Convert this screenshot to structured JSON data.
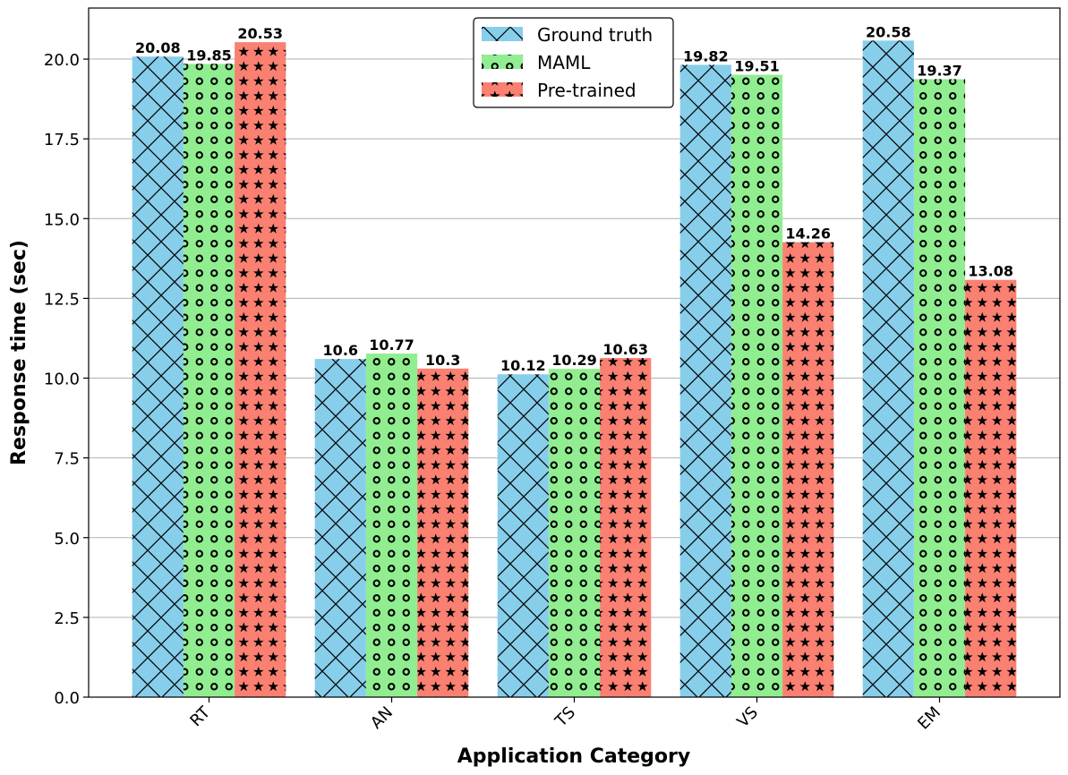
{
  "chart_data": {
    "type": "bar",
    "xlabel": "Application Category",
    "ylabel": "Response time (sec)",
    "categories": [
      "RT",
      "AN",
      "TS",
      "VS",
      "EM"
    ],
    "series": [
      {
        "name": "Ground truth",
        "values": [
          20.08,
          10.6,
          10.12,
          19.82,
          20.58
        ],
        "color": "#87ceeb",
        "pattern": "cross-hatch"
      },
      {
        "name": "MAML",
        "values": [
          19.85,
          10.77,
          10.29,
          19.51,
          19.37
        ],
        "color": "#90ee90",
        "pattern": "circles"
      },
      {
        "name": "Pre-trained",
        "values": [
          20.53,
          10.3,
          10.63,
          14.26,
          13.08
        ],
        "color": "#fa8072",
        "pattern": "stars"
      }
    ],
    "data_labels": [
      [
        "20.08",
        "10.6",
        "10.12",
        "19.82",
        "20.58"
      ],
      [
        "19.85",
        "10.77",
        "10.29",
        "19.51",
        "19.37"
      ],
      [
        "20.53",
        "10.3",
        "10.63",
        "14.26",
        "13.08"
      ]
    ],
    "yticks": [
      "0.0",
      "2.5",
      "5.0",
      "7.5",
      "10.0",
      "12.5",
      "15.0",
      "17.5",
      "20.0"
    ],
    "ylim": [
      0,
      21.6
    ],
    "grid": "y",
    "legend_position": "top-center"
  }
}
